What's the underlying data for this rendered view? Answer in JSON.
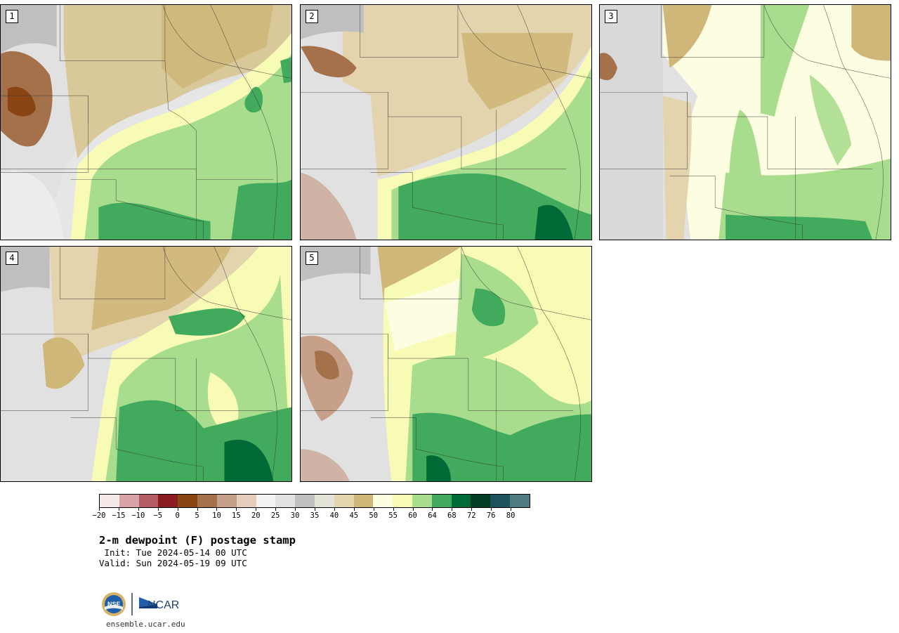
{
  "panels": [
    {
      "label": "1"
    },
    {
      "label": "2"
    },
    {
      "label": "3"
    },
    {
      "label": "4"
    },
    {
      "label": "5"
    }
  ],
  "colorbar": {
    "colors": [
      "#f5e9ea",
      "#d8a3a8",
      "#b45d64",
      "#8c1c24",
      "#8a4512",
      "#a5714b",
      "#c7a08a",
      "#e6cdbb",
      "#f2f2f2",
      "#e1e1e1",
      "#bfbfbf",
      "#e2e2d6",
      "#e3d4ad",
      "#cfb77a",
      "#fdfde1",
      "#f7fbb5",
      "#a9dd8e",
      "#41aa5c",
      "#006a37",
      "#003d23",
      "#1d535c",
      "#507b82"
    ],
    "tick_labels": [
      "−20",
      "−15",
      "−10",
      "−5",
      "0",
      "5",
      "10",
      "15",
      "20",
      "25",
      "30",
      "35",
      "40",
      "45",
      "50",
      "55",
      "60",
      "64",
      "68",
      "72",
      "76",
      "80"
    ]
  },
  "title": "2-m dewpoint (F) postage stamp",
  "init": " Init: Tue 2024-05-14 00 UTC",
  "valid": "Valid: Sun 2024-05-19 09 UTC",
  "logo": {
    "org1": "NSF",
    "org2": "NCAR",
    "icons": [
      "nsf-seal-icon",
      "ncar-logo-icon"
    ]
  },
  "site": "ensemble.ucar.edu"
}
